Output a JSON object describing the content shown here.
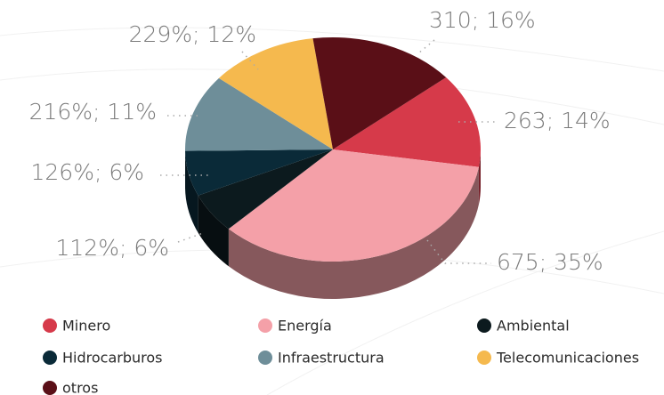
{
  "chart_data": {
    "type": "pie",
    "categories": [
      "Minero",
      "Energía",
      "Ambiental",
      "Hidrocarburos",
      "Infraestructura",
      "Telecomunicaciones",
      "otros"
    ],
    "values": [
      263,
      675,
      112,
      126,
      216,
      229,
      310
    ],
    "value_labels": [
      "263; 14%",
      "675; 35%",
      "112%; 6%",
      "126%; 6%",
      "216%; 11%",
      "229%; 12%",
      "310; 16%"
    ],
    "colors": [
      "#d63a4a",
      "#f4a0a8",
      "#0c1a1e",
      "#0a2a38",
      "#6e8e99",
      "#f5b94e",
      "#5a0f17"
    ],
    "legend": "bottom"
  }
}
